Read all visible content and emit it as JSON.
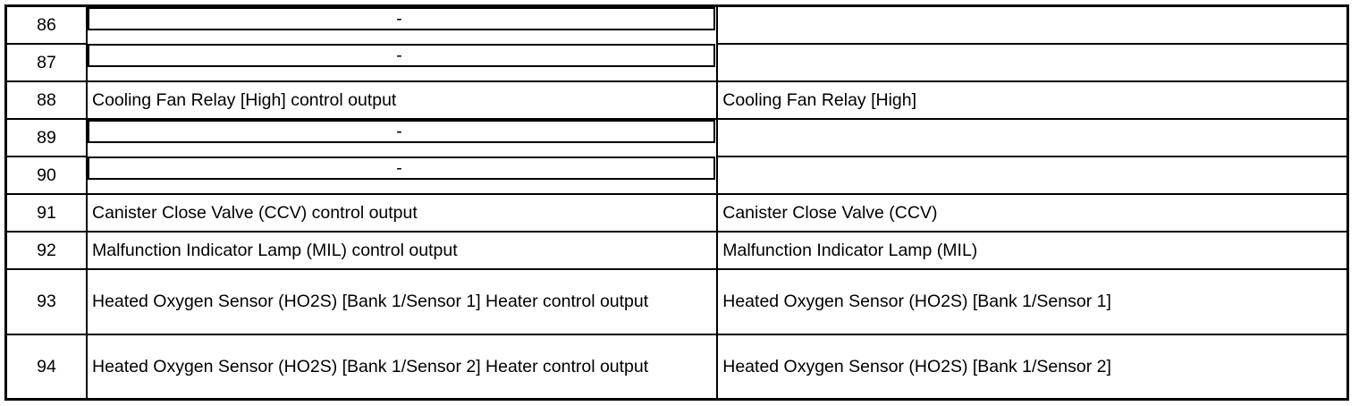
{
  "rows": [
    {
      "pin": "86",
      "description": "-",
      "component": ""
    },
    {
      "pin": "87",
      "description": "-",
      "component": ""
    },
    {
      "pin": "88",
      "description": "Cooling Fan Relay [High] control output",
      "component": "Cooling Fan Relay [High]"
    },
    {
      "pin": "89",
      "description": "-",
      "component": ""
    },
    {
      "pin": "90",
      "description": "-",
      "component": ""
    },
    {
      "pin": "91",
      "description": "Canister Close Valve (CCV) control output",
      "component": "Canister Close Valve (CCV)"
    },
    {
      "pin": "92",
      "description": "Malfunction Indicator Lamp (MIL) control output",
      "component": "Malfunction Indicator Lamp (MIL)"
    },
    {
      "pin": "93",
      "description": "Heated Oxygen Sensor (HO2S) [Bank 1/Sensor 1] Heater control output",
      "component": "Heated Oxygen Sensor (HO2S) [Bank 1/Sensor 1]"
    },
    {
      "pin": "94",
      "description": "Heated Oxygen Sensor (HO2S) [Bank 1/Sensor 2] Heater control output",
      "component": "Heated Oxygen Sensor (HO2S) [Bank 1/Sensor 2]"
    }
  ]
}
